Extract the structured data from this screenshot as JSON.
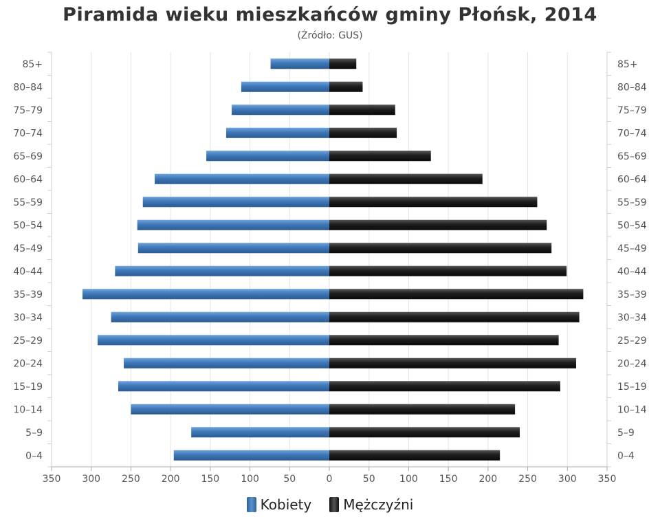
{
  "chart_data": {
    "type": "bar",
    "orientation": "horizontal-pyramid",
    "title": "Piramida wieku mieszkańców gminy Płońsk, 2014",
    "subtitle": "(Źródło: GUS)",
    "categories": [
      "85+",
      "80–84",
      "75–79",
      "70–74",
      "65–69",
      "60–64",
      "55–59",
      "50–54",
      "45–49",
      "40–44",
      "35–39",
      "30–34",
      "25–29",
      "20–24",
      "15–19",
      "10–14",
      "5–9",
      "0–4"
    ],
    "series": [
      {
        "name": "Kobiety",
        "color": "#4a7fbd",
        "values": [
          74,
          111,
          123,
          130,
          155,
          220,
          235,
          242,
          241,
          270,
          311,
          275,
          292,
          259,
          266,
          250,
          174,
          196
        ]
      },
      {
        "name": "Mężczyźni",
        "color": "#1a1a1a",
        "values": [
          34,
          42,
          83,
          85,
          128,
          193,
          262,
          274,
          280,
          299,
          320,
          315,
          289,
          311,
          291,
          234,
          240,
          215
        ]
      }
    ],
    "xlim": [
      -350,
      350
    ],
    "xticks": [
      350,
      300,
      250,
      200,
      150,
      100,
      50,
      0,
      50,
      100,
      150,
      200,
      250,
      300,
      350
    ],
    "grid": true,
    "legend_position": "bottom"
  }
}
